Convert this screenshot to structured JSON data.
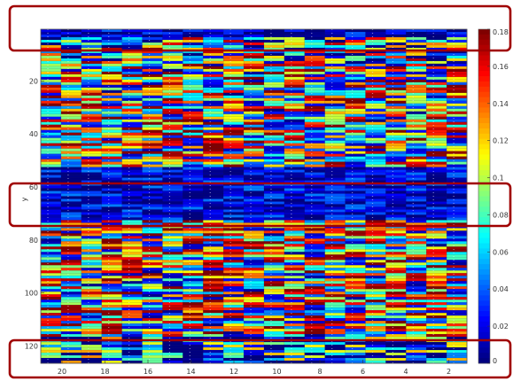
{
  "chart_data": {
    "type": "heatmap",
    "title": "",
    "xlabel": "",
    "ylabel": "y",
    "x_tick_labels": [
      "20",
      "18",
      "16",
      "14",
      "12",
      "10",
      "8",
      "6",
      "4",
      "2"
    ],
    "y_tick_labels": [
      "20",
      "40",
      "60",
      "80",
      "100",
      "120"
    ],
    "rows": 126,
    "cols": 21,
    "colorbar": {
      "colormap": "jet",
      "range": [
        0,
        0.18
      ],
      "tick_labels": [
        "0",
        "0.02",
        "0.04",
        "0.06",
        "0.08",
        "0.1",
        "0.12",
        "0.14",
        "0.16",
        "0.18"
      ]
    },
    "row_bands": [
      {
        "rows": [
          1,
          3
        ],
        "level": 0.01
      },
      {
        "rows": [
          4,
          12
        ],
        "level": 0.07
      },
      {
        "rows": [
          13,
          52
        ],
        "level": 0.1
      },
      {
        "rows": [
          53,
          72
        ],
        "level": 0.015
      },
      {
        "rows": [
          73,
          116
        ],
        "level": 0.1
      },
      {
        "rows": [
          117,
          126
        ],
        "level": 0.045
      }
    ],
    "overlay_boxes": 3,
    "overlay_color": "#a00000"
  }
}
